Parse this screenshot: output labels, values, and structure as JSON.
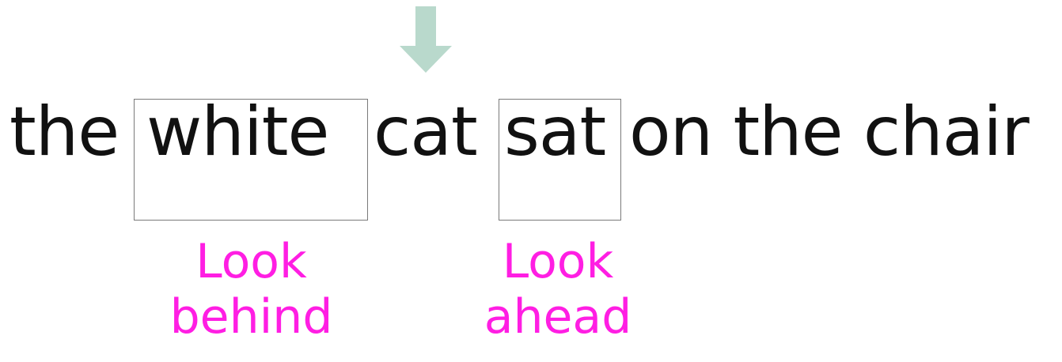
{
  "sentence": {
    "words": [
      "the",
      "white",
      "cat",
      "sat",
      "on the chair"
    ]
  },
  "labels": {
    "behind": {
      "line1": "Look",
      "line2": "behind"
    },
    "ahead": {
      "line1": "Look",
      "line2": "ahead"
    }
  },
  "colors": {
    "arrow": "#b9d9cc",
    "label": "#ff1ee3",
    "box_border": "#7a7a7a",
    "text": "#111111"
  },
  "icons": {
    "pointer": "down-arrow-icon"
  }
}
